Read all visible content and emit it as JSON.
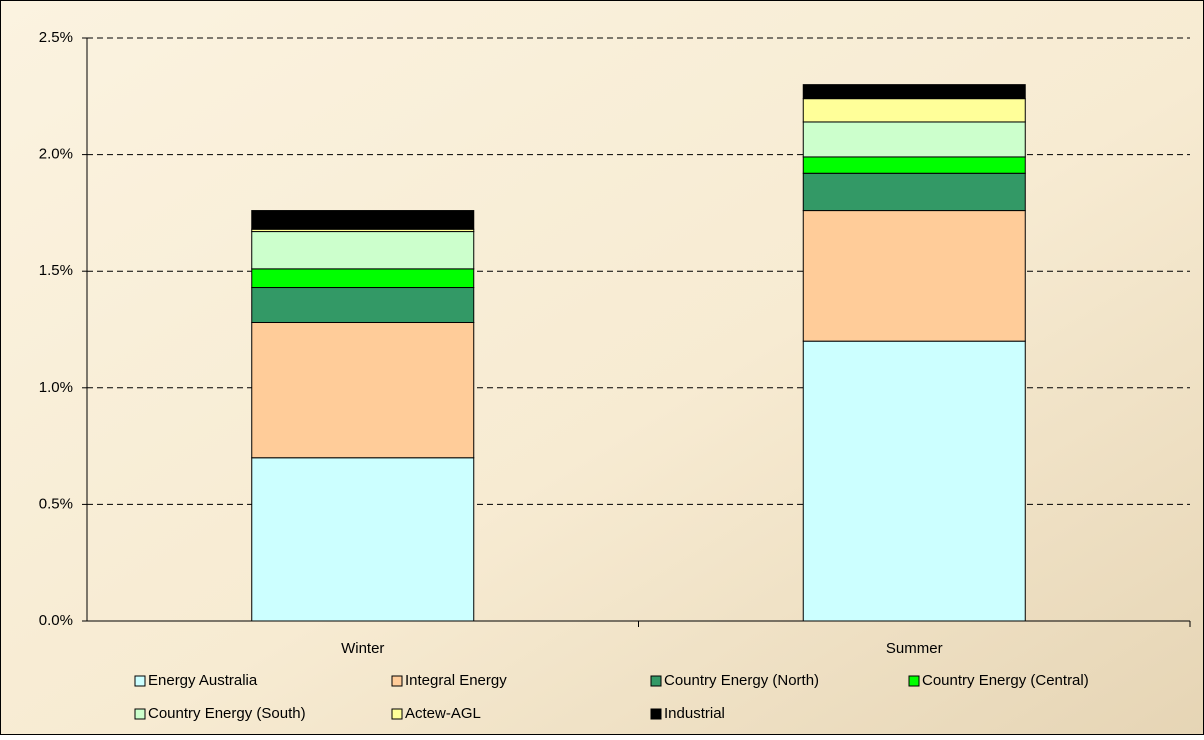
{
  "chart_data": {
    "type": "stacked_bar",
    "categories": [
      "Winter",
      "Summer"
    ],
    "series": [
      {
        "name": "Energy Australia",
        "color": "#ccffff",
        "values": [
          0.7,
          1.2
        ]
      },
      {
        "name": "Integral Energy",
        "color": "#ffcc99",
        "values": [
          0.58,
          0.56
        ]
      },
      {
        "name": "Country Energy (North)",
        "color": "#339966",
        "values": [
          0.15,
          0.16
        ]
      },
      {
        "name": "Country Energy (Central)",
        "color": "#00ff00",
        "values": [
          0.08,
          0.07
        ]
      },
      {
        "name": "Country Energy (South)",
        "color": "#ccffcc",
        "values": [
          0.16,
          0.15
        ]
      },
      {
        "name": "Actew-AGL",
        "color": "#ffff99",
        "values": [
          0.01,
          0.1
        ]
      },
      {
        "name": "Industrial",
        "color": "#000000",
        "values": [
          0.08,
          0.06
        ]
      }
    ],
    "ylim": [
      0,
      2.5
    ],
    "yticks": [
      {
        "value": 0,
        "label": "0.0%"
      },
      {
        "value": 0.5,
        "label": "0.5%"
      },
      {
        "value": 1.0,
        "label": "1.0%"
      },
      {
        "value": 1.5,
        "label": "1.5%"
      },
      {
        "value": 2.0,
        "label": "2.0%"
      },
      {
        "value": 2.5,
        "label": "2.5%"
      }
    ],
    "grid": true,
    "legend": "bottom"
  }
}
